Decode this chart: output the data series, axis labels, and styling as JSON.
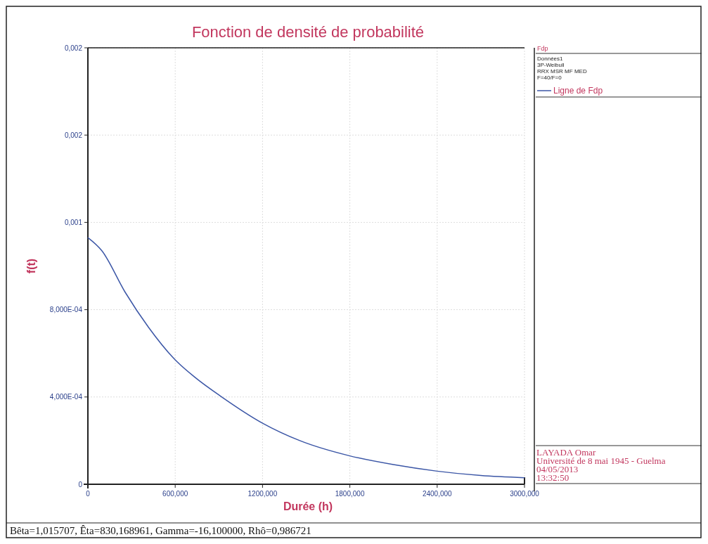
{
  "chart_data": {
    "type": "line",
    "title": "Fonction de densité de probabilité",
    "xlabel": "Durée (h)",
    "ylabel": "f(t)",
    "legend_title": "Fdp",
    "annotations": [
      "Données1",
      "3P-Weibull",
      "RRX MSR MF MED",
      "F=40/F=0",
      "LAYADA Omar",
      "Université de 8 mai 1945 - Guelma",
      "04/05/2013",
      "13:32:50",
      "Bêta=1,015707, Êta=830,168961, Gamma=-16,100000, Rhô=0,986721"
    ],
    "x": [
      0,
      96,
      256,
      416,
      600,
      736,
      920,
      1200,
      1456,
      1800,
      2100,
      2400,
      2700,
      3000
    ],
    "series": [
      {
        "name": "Ligne de Fdp",
        "color": "#3b56a6",
        "values": [
          0.00113,
          0.00107,
          0.00088,
          0.00072,
          0.00057,
          0.00049,
          0.0004,
          0.00028,
          0.0002,
          0.00013,
          9e-05,
          6e-05,
          4e-05,
          3e-05
        ]
      }
    ],
    "xlim": [
      0,
      3000
    ],
    "xticks": [
      0,
      {
        "value": 600,
        "label": "600,000"
      },
      {
        "value": 1200,
        "label": "1200,000"
      },
      {
        "value": 1800,
        "label": "1800,000"
      },
      {
        "value": 2400,
        "label": "2400,000"
      },
      {
        "value": 3000,
        "label": "3000,000"
      }
    ],
    "ylim": [
      0,
      0.002
    ],
    "yticks": [
      0,
      {
        "value": 0.0004,
        "label": "4,000E-04"
      },
      {
        "value": 0.0008,
        "label": "8,000E-04"
      },
      {
        "value": 0.0012,
        "label": "0,001"
      },
      {
        "value": 0.0016,
        "label": "0,002"
      },
      {
        "value": 0.002,
        "label": "0,002"
      }
    ],
    "grid": true,
    "legend": "top right",
    "marker": "none",
    "line_style": "solid"
  }
}
